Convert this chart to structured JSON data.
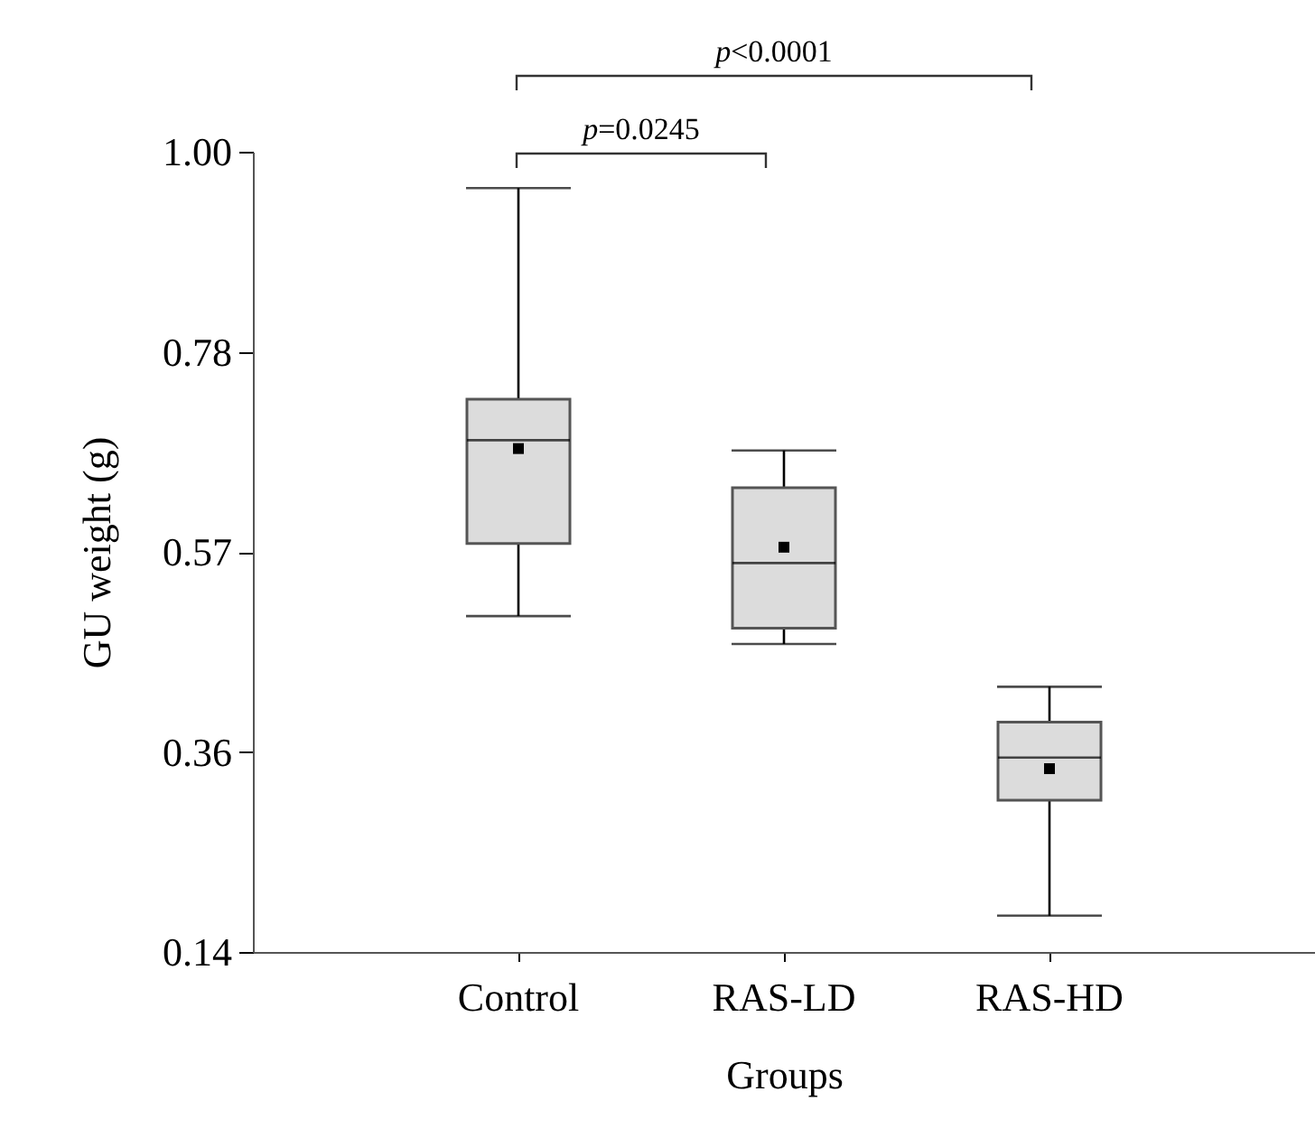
{
  "chart_data": {
    "type": "box",
    "xlabel": "Groups",
    "ylabel": "GU weight (g)",
    "categories": [
      "Control",
      "RAS-LD",
      "RAS-HD"
    ],
    "boxes": [
      {
        "low": 0.501,
        "q1": 0.579,
        "median": 0.69,
        "q3": 0.734,
        "high": 0.961,
        "mean": 0.681
      },
      {
        "low": 0.471,
        "q1": 0.488,
        "median": 0.558,
        "q3": 0.639,
        "high": 0.679,
        "mean": 0.575
      },
      {
        "low": 0.179,
        "q1": 0.303,
        "median": 0.349,
        "q3": 0.387,
        "high": 0.425,
        "mean": 0.337
      }
    ],
    "color": "#dcdcdc",
    "ylim": [
      0.14,
      1.0
    ],
    "yticks": [
      0.14,
      {
        "value": 0.355,
        "label": "0.36"
      },
      0.57,
      {
        "value": 0.785,
        "label": "0.78"
      },
      {
        "value": 1.0,
        "label": "1.00"
      }
    ],
    "annotations": [
      "p<0.0001",
      "p=0.0245"
    ],
    "grid": false,
    "marker": "square"
  }
}
